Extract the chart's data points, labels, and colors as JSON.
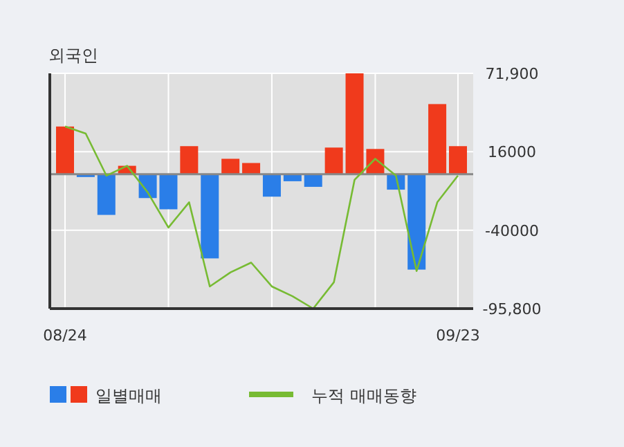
{
  "chart_data": {
    "type": "bar",
    "title": "외국인",
    "categories": [
      "08/24",
      null,
      null,
      null,
      null,
      null,
      null,
      null,
      null,
      null,
      null,
      null,
      null,
      null,
      null,
      null,
      null,
      null,
      null,
      "09/23"
    ],
    "series": [
      {
        "name": "일별매매",
        "colors": [
          "#f03a1c",
          "#2a7ee8",
          "#2a7ee8",
          "#f03a1c",
          "#2a7ee8",
          "#2a7ee8",
          "#f03a1c",
          "#2a7ee8",
          "#f03a1c",
          "#f03a1c",
          "#2a7ee8",
          "#2a7ee8",
          "#2a7ee8",
          "#f03a1c",
          "#f03a1c",
          "#f03a1c",
          "#2a7ee8",
          "#2a7ee8",
          "#f03a1c",
          "#f03a1c"
        ],
        "values": [
          34000,
          -2000,
          -29000,
          6000,
          -17000,
          -25000,
          20000,
          -60000,
          11000,
          8000,
          -16000,
          -5000,
          -9000,
          19000,
          71900,
          18000,
          -11000,
          -68000,
          50000,
          20000
        ]
      },
      {
        "name": "누적 매매동향",
        "type": "line",
        "color": "#77bb33",
        "values": [
          34000,
          29000,
          -1000,
          6000,
          -13000,
          -38000,
          -20000,
          -80000,
          -70000,
          -63000,
          -80000,
          -87000,
          -95800,
          -77000,
          -4000,
          11000,
          -1000,
          -69000,
          -20000,
          -1000
        ]
      }
    ],
    "ylim": [
      -95800,
      71900
    ],
    "yticks": [
      {
        "value": 71900,
        "label": "71,900"
      },
      16000,
      -40000,
      {
        "value": -95800,
        "label": "-95,800"
      }
    ],
    "grid": true,
    "legend": "bottom"
  }
}
